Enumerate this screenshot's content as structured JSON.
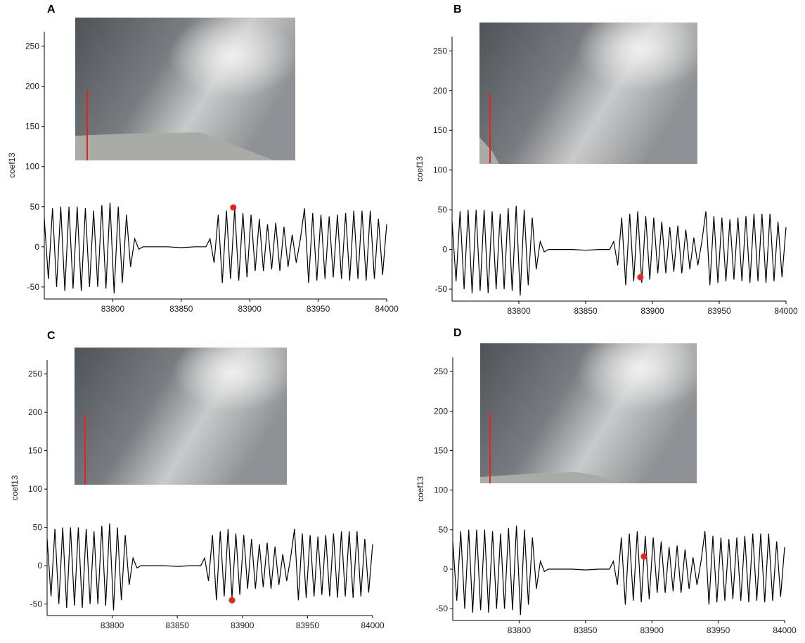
{
  "chart_data": [
    {
      "type": "line",
      "panel": "A",
      "ylabel": "coef13",
      "xlim": [
        83750,
        84000
      ],
      "ylim": [
        -65,
        268
      ],
      "xticks": [
        83800,
        83850,
        83900,
        83950,
        84000
      ],
      "yticks": [
        -50,
        0,
        50,
        100,
        150,
        200,
        250
      ],
      "color": "#000000",
      "x": [
        83750,
        83753,
        83756,
        83759,
        83762,
        83765,
        83768,
        83771,
        83774,
        83777,
        83780,
        83783,
        83786,
        83789,
        83792,
        83795,
        83798,
        83801,
        83804,
        83807,
        83810,
        83813,
        83816,
        83819,
        83822,
        83830,
        83840,
        83850,
        83860,
        83868,
        83871,
        83874,
        83877,
        83880,
        83883,
        83886,
        83889,
        83892,
        83895,
        83898,
        83901,
        83904,
        83907,
        83910,
        83913,
        83916,
        83919,
        83922,
        83925,
        83928,
        83931,
        83934,
        83937,
        83940,
        83943,
        83946,
        83949,
        83952,
        83955,
        83958,
        83961,
        83964,
        83967,
        83970,
        83973,
        83976,
        83979,
        83982,
        83985,
        83988,
        83991,
        83994,
        83997,
        84000
      ],
      "values": [
        35,
        -40,
        48,
        -50,
        50,
        -55,
        50,
        -52,
        50,
        -55,
        48,
        -50,
        45,
        -50,
        52,
        -52,
        55,
        -58,
        50,
        -45,
        40,
        -25,
        10,
        -3,
        0,
        0,
        0,
        -1,
        0,
        0,
        10,
        -20,
        40,
        -45,
        45,
        -40,
        48,
        -42,
        42,
        -38,
        40,
        -30,
        35,
        -30,
        28,
        -28,
        30,
        -30,
        25,
        -25,
        15,
        -20,
        10,
        48,
        -45,
        42,
        -42,
        40,
        -40,
        38,
        -38,
        40,
        -40,
        42,
        -42,
        45,
        -40,
        45,
        -42,
        45,
        -40,
        35,
        -35,
        28
      ],
      "marker": {
        "x": 83888,
        "y": 49,
        "color": "#e8231c"
      }
    },
    {
      "type": "line",
      "panel": "B",
      "ylabel": "coef13",
      "xlim": [
        83750,
        84000
      ],
      "ylim": [
        -65,
        268
      ],
      "xticks": [
        83800,
        83850,
        83900,
        83950,
        84000
      ],
      "yticks": [
        -50,
        0,
        50,
        100,
        150,
        200,
        250
      ],
      "color": "#000000",
      "x": [
        83750,
        83753,
        83756,
        83759,
        83762,
        83765,
        83768,
        83771,
        83774,
        83777,
        83780,
        83783,
        83786,
        83789,
        83792,
        83795,
        83798,
        83801,
        83804,
        83807,
        83810,
        83813,
        83816,
        83819,
        83822,
        83830,
        83840,
        83850,
        83860,
        83868,
        83871,
        83874,
        83877,
        83880,
        83883,
        83886,
        83889,
        83892,
        83895,
        83898,
        83901,
        83904,
        83907,
        83910,
        83913,
        83916,
        83919,
        83922,
        83925,
        83928,
        83931,
        83934,
        83937,
        83940,
        83943,
        83946,
        83949,
        83952,
        83955,
        83958,
        83961,
        83964,
        83967,
        83970,
        83973,
        83976,
        83979,
        83982,
        83985,
        83988,
        83991,
        83994,
        83997,
        84000
      ],
      "values": [
        35,
        -40,
        48,
        -50,
        50,
        -55,
        50,
        -52,
        50,
        -55,
        48,
        -50,
        45,
        -50,
        52,
        -52,
        55,
        -58,
        50,
        -45,
        40,
        -25,
        10,
        -3,
        0,
        0,
        0,
        -1,
        0,
        0,
        10,
        -20,
        40,
        -45,
        45,
        -40,
        48,
        -42,
        42,
        -38,
        40,
        -30,
        35,
        -30,
        28,
        -28,
        30,
        -30,
        25,
        -25,
        15,
        -20,
        10,
        48,
        -45,
        42,
        -42,
        40,
        -40,
        38,
        -38,
        40,
        -40,
        42,
        -42,
        45,
        -40,
        45,
        -42,
        45,
        -40,
        35,
        -35,
        28
      ],
      "marker": {
        "x": 83891,
        "y": -35,
        "color": "#e8231c"
      }
    },
    {
      "type": "line",
      "panel": "C",
      "ylabel": "coef13",
      "xlim": [
        83750,
        84000
      ],
      "ylim": [
        -65,
        268
      ],
      "xticks": [
        83800,
        83850,
        83900,
        83950,
        84000
      ],
      "yticks": [
        -50,
        0,
        50,
        100,
        150,
        200,
        250
      ],
      "color": "#000000",
      "x": [
        83750,
        83753,
        83756,
        83759,
        83762,
        83765,
        83768,
        83771,
        83774,
        83777,
        83780,
        83783,
        83786,
        83789,
        83792,
        83795,
        83798,
        83801,
        83804,
        83807,
        83810,
        83813,
        83816,
        83819,
        83822,
        83830,
        83840,
        83850,
        83860,
        83868,
        83871,
        83874,
        83877,
        83880,
        83883,
        83886,
        83889,
        83892,
        83895,
        83898,
        83901,
        83904,
        83907,
        83910,
        83913,
        83916,
        83919,
        83922,
        83925,
        83928,
        83931,
        83934,
        83937,
        83940,
        83943,
        83946,
        83949,
        83952,
        83955,
        83958,
        83961,
        83964,
        83967,
        83970,
        83973,
        83976,
        83979,
        83982,
        83985,
        83988,
        83991,
        83994,
        83997,
        84000
      ],
      "values": [
        35,
        -40,
        48,
        -50,
        50,
        -55,
        50,
        -52,
        50,
        -55,
        48,
        -50,
        45,
        -50,
        52,
        -52,
        55,
        -58,
        50,
        -45,
        40,
        -25,
        10,
        -3,
        0,
        0,
        0,
        -1,
        0,
        0,
        10,
        -20,
        40,
        -45,
        45,
        -40,
        48,
        -42,
        42,
        -38,
        40,
        -30,
        35,
        -30,
        28,
        -28,
        30,
        -30,
        25,
        -25,
        15,
        -20,
        10,
        48,
        -45,
        42,
        -42,
        40,
        -40,
        38,
        -38,
        40,
        -40,
        42,
        -42,
        45,
        -40,
        45,
        -42,
        45,
        -40,
        35,
        -35,
        28
      ],
      "marker": {
        "x": 83892,
        "y": -45,
        "color": "#e8231c"
      }
    },
    {
      "type": "line",
      "panel": "D",
      "ylabel": "coef13",
      "xlim": [
        83750,
        84000
      ],
      "ylim": [
        -65,
        268
      ],
      "xticks": [
        83800,
        83850,
        83900,
        83950,
        84000
      ],
      "yticks": [
        -50,
        0,
        50,
        100,
        150,
        200,
        250
      ],
      "color": "#000000",
      "x": [
        83750,
        83753,
        83756,
        83759,
        83762,
        83765,
        83768,
        83771,
        83774,
        83777,
        83780,
        83783,
        83786,
        83789,
        83792,
        83795,
        83798,
        83801,
        83804,
        83807,
        83810,
        83813,
        83816,
        83819,
        83822,
        83830,
        83840,
        83850,
        83860,
        83868,
        83871,
        83874,
        83877,
        83880,
        83883,
        83886,
        83889,
        83892,
        83895,
        83898,
        83901,
        83904,
        83907,
        83910,
        83913,
        83916,
        83919,
        83922,
        83925,
        83928,
        83931,
        83934,
        83937,
        83940,
        83943,
        83946,
        83949,
        83952,
        83955,
        83958,
        83961,
        83964,
        83967,
        83970,
        83973,
        83976,
        83979,
        83982,
        83985,
        83988,
        83991,
        83994,
        83997,
        84000
      ],
      "values": [
        35,
        -40,
        48,
        -50,
        50,
        -55,
        50,
        -52,
        50,
        -55,
        48,
        -50,
        45,
        -50,
        52,
        -52,
        55,
        -58,
        50,
        -45,
        40,
        -25,
        10,
        -3,
        0,
        0,
        0,
        -1,
        0,
        0,
        10,
        -20,
        40,
        -45,
        45,
        -40,
        48,
        -42,
        42,
        -38,
        40,
        -30,
        35,
        -30,
        28,
        -28,
        30,
        -30,
        25,
        -25,
        15,
        -20,
        10,
        48,
        -45,
        42,
        -42,
        40,
        -40,
        38,
        -38,
        40,
        -40,
        42,
        -42,
        45,
        -40,
        45,
        -42,
        45,
        -40,
        35,
        -35,
        28
      ],
      "marker": {
        "x": 83894,
        "y": 16,
        "color": "#e8231c"
      }
    }
  ]
}
